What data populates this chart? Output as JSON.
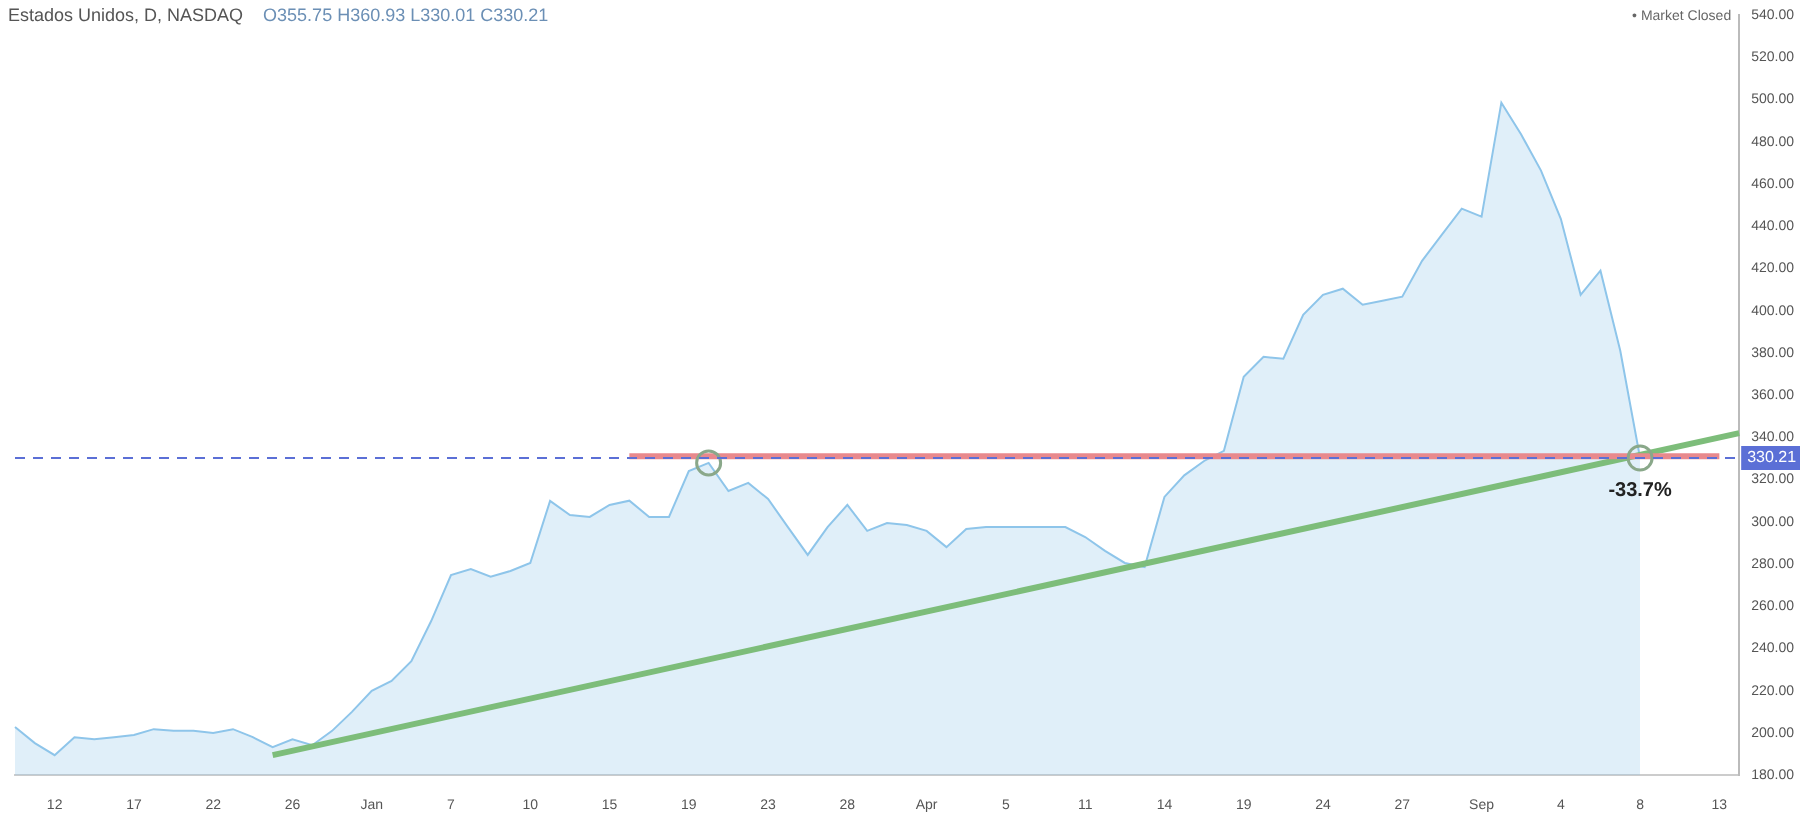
{
  "chart_data": {
    "type": "area",
    "title": "Estados Unidos, D, NASDAQ",
    "categories": [
      null,
      null,
      "12",
      null,
      null,
      null,
      "17",
      null,
      null,
      null,
      "22",
      null,
      null,
      null,
      "26",
      null,
      null,
      null,
      "Jan",
      null,
      null,
      null,
      "7",
      null,
      null,
      null,
      "10",
      null,
      null,
      null,
      "15",
      null,
      null,
      null,
      "19",
      null,
      null,
      null,
      "23",
      null,
      null,
      null,
      "28",
      null,
      null,
      null,
      "Apr",
      null,
      null,
      null,
      "5",
      null,
      null,
      null,
      "11",
      null,
      null,
      null,
      "14",
      null,
      null,
      null,
      "19",
      null,
      null,
      null,
      "24",
      null,
      null,
      null,
      "27",
      null,
      null,
      null,
      "Sep",
      null,
      null,
      null,
      "4",
      null,
      null,
      null,
      "8",
      null,
      null,
      null,
      "13",
      null
    ],
    "series": [
      {
        "color": "#8ec5ea",
        "values": [
          202.8,
          195.2,
          189.5,
          198,
          197,
          198,
          199,
          201.8,
          201,
          201,
          200,
          201.8,
          198,
          193.3,
          197,
          194.2,
          201,
          210,
          220,
          224.6,
          234,
          253,
          274.8,
          277.6,
          274,
          276.7,
          280.5,
          309.9,
          303.2,
          302.3,
          308,
          310,
          302.3,
          302.3,
          324,
          327.9,
          314.6,
          318.4,
          310.8,
          297.5,
          284.3,
          297.5,
          308,
          295.7,
          299.4,
          298.5,
          295.7,
          288,
          296.6,
          297.5,
          297.5,
          297.5,
          297.5,
          297.5,
          292.8,
          286.2,
          280.5,
          278.6,
          311.8,
          322,
          328.8,
          333.6,
          368.7,
          378.1,
          377.2,
          398,
          407.5,
          410.4,
          402.8,
          404.7,
          406.6,
          423.6,
          436,
          448.3,
          444.5,
          498.5,
          483.4,
          466.3,
          443.5,
          407.5,
          418.9,
          381,
          330.21,
          null,
          null,
          null,
          null,
          null
        ]
      },
      {
        "type": "line",
        "color": "#e8898d",
        "values": [
          null,
          null,
          null,
          null,
          null,
          null,
          null,
          null,
          null,
          null,
          null,
          null,
          null,
          null,
          null,
          null,
          null,
          null,
          null,
          null,
          null,
          null,
          null,
          null,
          null,
          null,
          null,
          null,
          null,
          null,
          null,
          331,
          null,
          null,
          null,
          null,
          null,
          null,
          null,
          null,
          null,
          null,
          null,
          null,
          null,
          null,
          null,
          null,
          null,
          null,
          null,
          null,
          null,
          null,
          null,
          null,
          null,
          null,
          null,
          null,
          null,
          null,
          null,
          null,
          null,
          null,
          null,
          null,
          null,
          null,
          null,
          null,
          null,
          null,
          null,
          null,
          null,
          null,
          null,
          null,
          null,
          null,
          null,
          null,
          null,
          null,
          331,
          null
        ]
      },
      {
        "type": "line",
        "color": "#7dbd7a",
        "values": [
          null,
          null,
          null,
          null,
          null,
          null,
          null,
          null,
          null,
          null,
          null,
          null,
          null,
          189.5,
          null,
          null,
          null,
          null,
          null,
          null,
          null,
          null,
          null,
          null,
          null,
          null,
          null,
          null,
          null,
          null,
          null,
          null,
          null,
          null,
          null,
          null,
          null,
          null,
          null,
          null,
          null,
          null,
          null,
          null,
          null,
          null,
          null,
          null,
          null,
          null,
          null,
          null,
          null,
          null,
          null,
          null,
          null,
          null,
          null,
          null,
          null,
          null,
          null,
          null,
          null,
          null,
          null,
          null,
          null,
          null,
          null,
          null,
          null,
          null,
          null,
          null,
          null,
          null,
          null,
          null,
          null,
          null,
          null,
          null,
          null,
          null,
          null,
          342
        ]
      },
      {
        "type": "scatter",
        "color": "#8aa88a",
        "marker": "circle",
        "values": [
          null,
          null,
          null,
          null,
          null,
          null,
          null,
          null,
          null,
          null,
          null,
          null,
          null,
          null,
          null,
          null,
          null,
          null,
          null,
          null,
          null,
          null,
          null,
          null,
          null,
          null,
          null,
          null,
          null,
          null,
          null,
          null,
          null,
          null,
          null,
          327.9,
          null,
          null,
          null,
          null,
          null,
          null,
          null,
          null,
          null,
          null,
          null,
          null,
          null,
          null,
          null,
          null,
          null,
          null,
          null,
          null,
          null,
          null,
          null,
          null,
          null,
          null,
          null,
          null,
          null,
          null,
          null,
          null,
          null,
          null,
          null,
          null,
          null,
          null,
          null,
          null,
          null,
          null,
          null,
          null,
          null,
          null,
          330.21,
          null,
          null,
          null,
          null,
          null
        ]
      }
    ],
    "marker": "none",
    "ylim": [
      180,
      540
    ],
    "yticks": [
      {
        "value": 180,
        "label": "180.00"
      },
      {
        "value": 200,
        "label": "200.00"
      },
      {
        "value": 220,
        "label": "220.00"
      },
      {
        "value": 240,
        "label": "240.00"
      },
      {
        "value": 260,
        "label": "260.00"
      },
      {
        "value": 280,
        "label": "280.00"
      },
      {
        "value": 300,
        "label": "300.00"
      },
      {
        "value": 320,
        "label": "320.00"
      },
      {
        "value": 340,
        "label": "340.00"
      },
      {
        "value": 360,
        "label": "360.00"
      },
      {
        "value": 380,
        "label": "380.00"
      },
      {
        "value": 400,
        "label": "400.00"
      },
      {
        "value": 420,
        "label": "420.00"
      },
      {
        "value": 440,
        "label": "440.00"
      },
      {
        "value": 460,
        "label": "460.00"
      },
      {
        "value": 480,
        "label": "480.00"
      },
      {
        "value": 500,
        "label": "500.00"
      },
      {
        "value": 520,
        "label": "520.00"
      },
      {
        "value": 540,
        "label": "540.00"
      }
    ],
    "ref_lines": [
      {
        "axis": "y",
        "value": 330.21,
        "label": "330.21",
        "color": "#5b6fd6",
        "line_style": "dashed"
      }
    ],
    "annotations": [
      "O355.75 H360.93 L330.01 C330.21",
      "• Market Closed",
      "-33.7%"
    ]
  }
}
